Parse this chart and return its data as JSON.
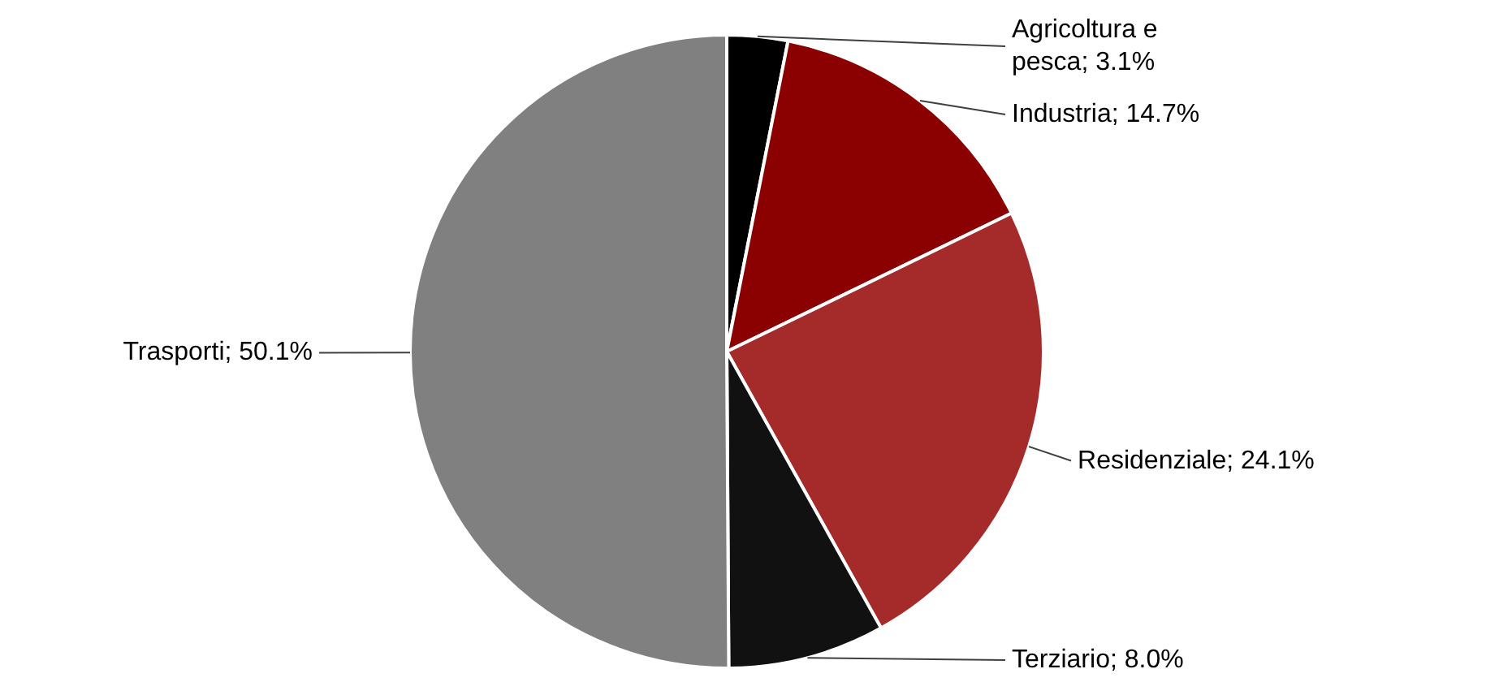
{
  "chart_data": {
    "type": "pie",
    "categories": [
      "Agricoltura e pesca",
      "Industria",
      "Residenziale",
      "Terziario",
      "Trasporti"
    ],
    "values": [
      3.1,
      14.7,
      24.1,
      8.0,
      50.1
    ],
    "colors": [
      "#000000",
      "#8b0000",
      "#a52a2a",
      "#111111",
      "#808080"
    ],
    "value_labels": [
      "; 3.1%",
      "; 14.7%",
      "; 24.1%",
      "; 8.0%",
      "; 50.1%"
    ]
  }
}
